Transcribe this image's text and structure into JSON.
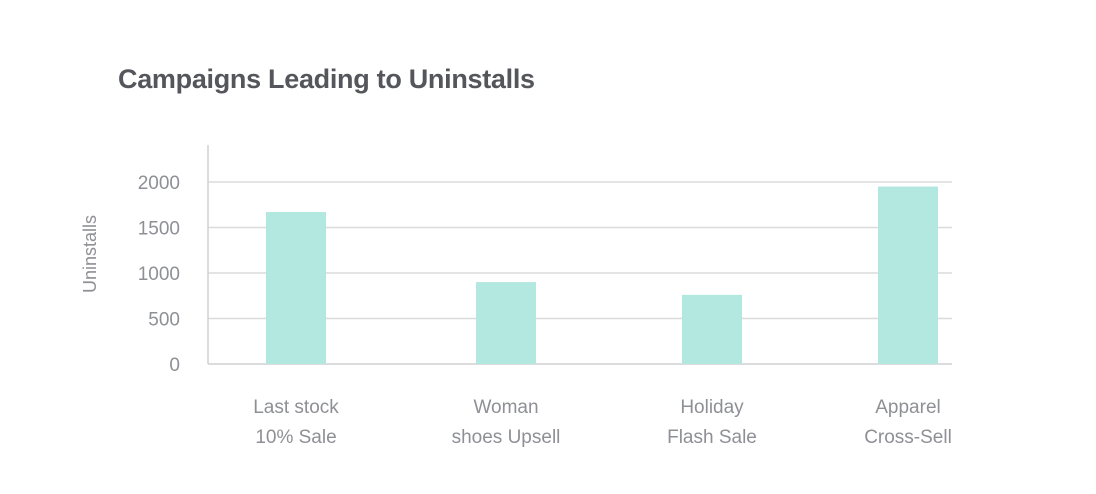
{
  "chart_data": {
    "type": "bar",
    "title": "Campaigns Leading to Uninstalls",
    "xlabel": "",
    "ylabel": "Uninstalls",
    "categories": [
      [
        "Last stock",
        "10% Sale"
      ],
      [
        "Woman",
        "shoes Upsell"
      ],
      [
        "Holiday",
        "Flash Sale"
      ],
      [
        "Apparel",
        "Cross-Sell"
      ]
    ],
    "values": [
      1670,
      900,
      760,
      1950
    ],
    "yticks": [
      0,
      500,
      1000,
      1500,
      2000
    ],
    "ylim": [
      0,
      2400
    ],
    "grid": true,
    "legend": "none",
    "bar_color": "#b3e8e0",
    "grid_color": "#dadbdd",
    "axis_color": "#d0d1d4",
    "label_color": "#8e9095"
  }
}
